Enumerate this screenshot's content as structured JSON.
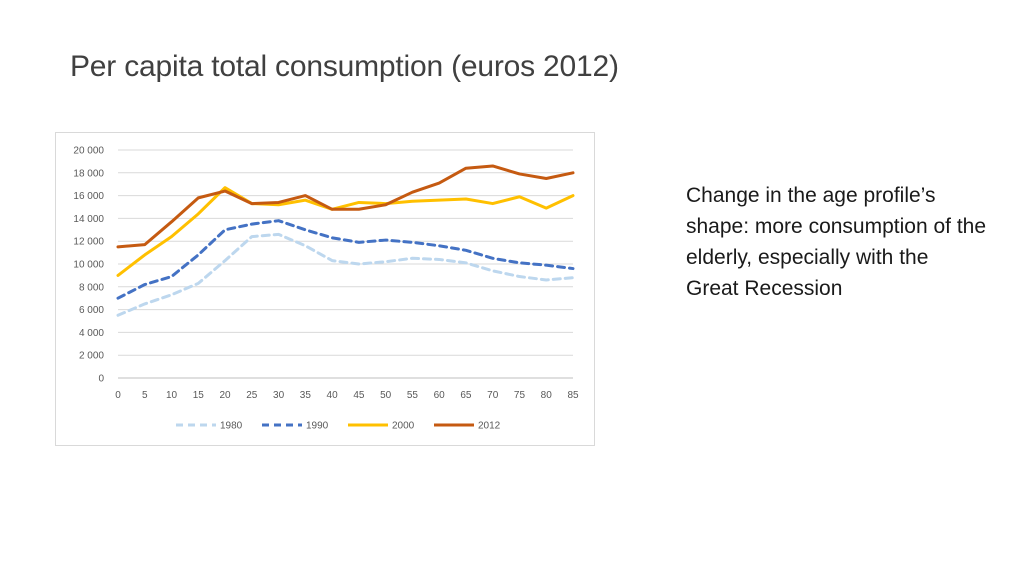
{
  "slide": {
    "title": "Per capita total consumption (euros 2012)",
    "note": "Change in the age profile’s shape: more consumption of the elderly, especially with the Great Recession"
  },
  "chart_data": {
    "type": "line",
    "title": "",
    "xlabel": "",
    "ylabel": "",
    "xlim": [
      0,
      85
    ],
    "ylim": [
      0,
      20000
    ],
    "x_ticks": [
      "0",
      "5",
      "10",
      "15",
      "20",
      "25",
      "30",
      "35",
      "40",
      "45",
      "50",
      "55",
      "60",
      "65",
      "70",
      "75",
      "80",
      "85"
    ],
    "y_ticks": [
      "0",
      "2 000",
      "4 000",
      "6 000",
      "8 000",
      "10 000",
      "12 000",
      "14 000",
      "16 000",
      "18 000",
      "20 000"
    ],
    "grid": true,
    "legend_position": "bottom",
    "x": [
      0,
      5,
      10,
      15,
      20,
      25,
      30,
      35,
      40,
      45,
      50,
      55,
      60,
      65,
      70,
      75,
      80,
      85
    ],
    "series": [
      {
        "name": "1980",
        "color": "#bdd7ee",
        "dash": "dashed",
        "values": [
          5500,
          6500,
          7300,
          8300,
          10300,
          12400,
          12600,
          11600,
          10300,
          10000,
          10200,
          10500,
          10400,
          10100,
          9400,
          8900,
          8600,
          8800
        ]
      },
      {
        "name": "1990",
        "color": "#4472c4",
        "dash": "dashed",
        "values": [
          7000,
          8200,
          8900,
          10800,
          13000,
          13500,
          13800,
          13000,
          12300,
          11900,
          12100,
          11900,
          11600,
          11200,
          10500,
          10100,
          9900,
          9600
        ]
      },
      {
        "name": "2000",
        "color": "#ffc000",
        "dash": "solid",
        "values": [
          9000,
          10800,
          12400,
          14400,
          16700,
          15300,
          15200,
          15600,
          14800,
          15400,
          15300,
          15500,
          15600,
          15700,
          15300,
          15900,
          14900,
          16000
        ]
      },
      {
        "name": "2012",
        "color": "#c55a11",
        "dash": "solid",
        "values": [
          11500,
          11700,
          13700,
          15800,
          16400,
          15300,
          15400,
          16000,
          14800,
          14800,
          15200,
          16300,
          17100,
          18400,
          18600,
          17900,
          17500,
          18000
        ]
      }
    ]
  }
}
